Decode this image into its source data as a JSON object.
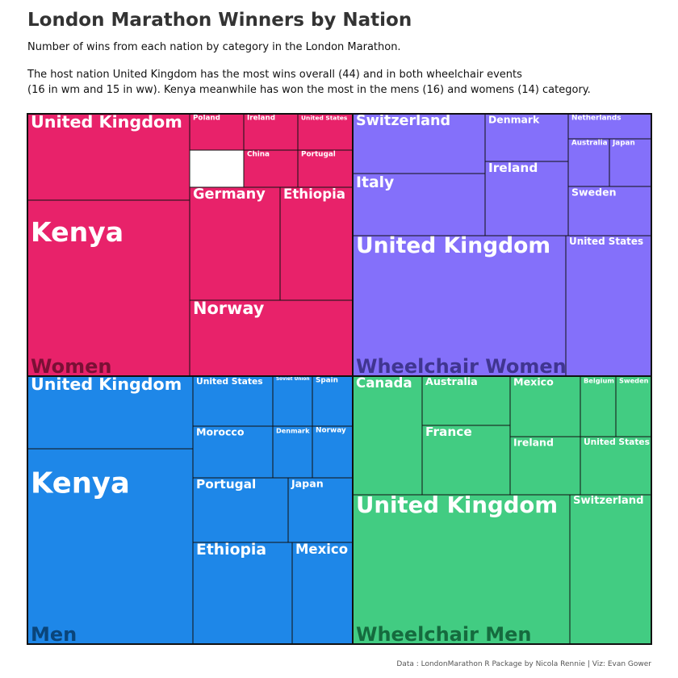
{
  "title": "London Marathon Winners by Nation",
  "subtitle": "Number of wins from each nation by category in the London Marathon.",
  "description_line1": "The host nation United Kingdom has the most wins overall (44) and in both wheelchair events",
  "description_line2": "(16 in wm and 15 in ww). Kenya meanwhile has won the most in the mens (16) and womens (14) category.",
  "caption": "Data : LondonMarathon R Package by Nicola Rennie | Viz: Evan Gower",
  "colors": {
    "Women": "#E8226A",
    "Wheelchair Women": "#8470FA",
    "Men": "#1E87E8",
    "Wheelchair Men": "#42CC82",
    "text": "#FFFFFF",
    "border": "#111111"
  },
  "chart_data": {
    "type": "treemap",
    "groups": [
      {
        "name": "Women",
        "label_color": "#7A1035",
        "items": [
          {
            "name": "Kenya",
            "value": 14
          },
          {
            "name": "United Kingdom",
            "value": 6
          },
          {
            "name": "Norway",
            "value": 5
          },
          {
            "name": "Germany",
            "value": 3
          },
          {
            "name": "Ethiopia",
            "value": 3
          },
          {
            "name": "Poland",
            "value": 1
          },
          {
            "name": "Ireland",
            "value": 1
          },
          {
            "name": "United States",
            "value": 1
          },
          {
            "name": "China",
            "value": 1
          },
          {
            "name": "Portugal",
            "value": 1
          }
        ]
      },
      {
        "name": "Wheelchair Women",
        "label_color": "#403591",
        "items": [
          {
            "name": "United Kingdom",
            "value": 15
          },
          {
            "name": "Italy",
            "value": 5
          },
          {
            "name": "Switzerland",
            "value": 4
          },
          {
            "name": "United States",
            "value": 4
          },
          {
            "name": "Ireland",
            "value": 3
          },
          {
            "name": "Denmark",
            "value": 2
          },
          {
            "name": "Sweden",
            "value": 2
          },
          {
            "name": "Netherlands",
            "value": 1
          },
          {
            "name": "Australia",
            "value": 1
          },
          {
            "name": "Japan",
            "value": 1
          }
        ]
      },
      {
        "name": "Men",
        "label_color": "#0A457A",
        "items": [
          {
            "name": "Kenya",
            "value": 16
          },
          {
            "name": "United Kingdom",
            "value": 7
          },
          {
            "name": "Ethiopia",
            "value": 4
          },
          {
            "name": "Mexico",
            "value": 4
          },
          {
            "name": "Portugal",
            "value": 3
          },
          {
            "name": "Japan",
            "value": 2
          },
          {
            "name": "Morocco",
            "value": 2
          },
          {
            "name": "United States",
            "value": 1
          },
          {
            "name": "Soviet Union",
            "value": 1
          },
          {
            "name": "Spain",
            "value": 1
          },
          {
            "name": "Denmark",
            "value": 1
          },
          {
            "name": "Norway",
            "value": 1
          }
        ]
      },
      {
        "name": "Wheelchair Men",
        "label_color": "#156B3E",
        "items": [
          {
            "name": "United Kingdom",
            "value": 16
          },
          {
            "name": "Switzerland",
            "value": 6
          },
          {
            "name": "Canada",
            "value": 3
          },
          {
            "name": "Australia",
            "value": 2
          },
          {
            "name": "France",
            "value": 3
          },
          {
            "name": "Mexico",
            "value": 2
          },
          {
            "name": "Ireland",
            "value": 2
          },
          {
            "name": "United States",
            "value": 2
          },
          {
            "name": "Belgium",
            "value": 1
          },
          {
            "name": "Sweden",
            "value": 1
          }
        ]
      }
    ]
  }
}
